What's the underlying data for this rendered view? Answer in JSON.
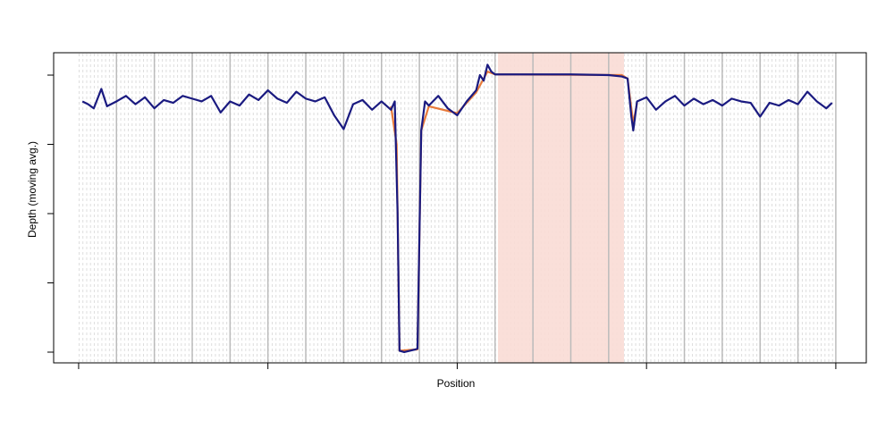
{
  "chart_data": {
    "type": "line",
    "x_label": "Position",
    "y_label": "Depth (moving avg.)",
    "xlim": [
      -0.132,
      4.161
    ],
    "ylim": [
      -0.155,
      4.323
    ],
    "xticks": [
      0,
      1,
      2,
      3,
      4
    ],
    "yticks": [
      0,
      1,
      2,
      3,
      4
    ],
    "major_grid_x": [
      0.2,
      0.4,
      0.6,
      0.8,
      1.0,
      1.2,
      1.4,
      1.6,
      1.8,
      2.0,
      2.2,
      2.4,
      2.6,
      2.8,
      3.0,
      3.2,
      3.4,
      3.6,
      3.8,
      4.0
    ],
    "highlight": {
      "xrange": [
        2.215,
        2.881
      ],
      "color": "#f9dcd5"
    },
    "series": [
      {
        "color": "#e87a3a",
        "x": [
          1.65,
          1.68,
          1.695,
          1.79,
          1.81,
          1.85,
          2.0,
          2.1,
          2.16,
          2.2,
          2.87,
          2.9,
          2.93,
          2.95
        ],
        "values": [
          3.55,
          3.0,
          0.02,
          0.04,
          3.2,
          3.55,
          3.45,
          3.75,
          4.05,
          4.01,
          4.0,
          3.95,
          3.3,
          3.6
        ]
      },
      {
        "color": "#1a1a80",
        "x": [
          0.02,
          0.05,
          0.08,
          0.1,
          0.12,
          0.15,
          0.2,
          0.25,
          0.3,
          0.35,
          0.4,
          0.45,
          0.5,
          0.55,
          0.6,
          0.65,
          0.7,
          0.75,
          0.8,
          0.85,
          0.9,
          0.95,
          1.0,
          1.05,
          1.1,
          1.15,
          1.2,
          1.25,
          1.3,
          1.35,
          1.4,
          1.45,
          1.5,
          1.55,
          1.6,
          1.65,
          1.67,
          1.685,
          1.695,
          1.72,
          1.75,
          1.78,
          1.79,
          1.81,
          1.83,
          1.85,
          1.9,
          1.95,
          2.0,
          2.05,
          2.1,
          2.12,
          2.14,
          2.16,
          2.18,
          2.2,
          2.4,
          2.5,
          2.6,
          2.8,
          2.87,
          2.9,
          2.92,
          2.93,
          2.95,
          3.0,
          3.05,
          3.1,
          3.15,
          3.2,
          3.25,
          3.3,
          3.35,
          3.4,
          3.45,
          3.5,
          3.55,
          3.6,
          3.65,
          3.7,
          3.75,
          3.8,
          3.85,
          3.9,
          3.95,
          3.98
        ],
        "values": [
          3.62,
          3.58,
          3.52,
          3.66,
          3.8,
          3.55,
          3.62,
          3.7,
          3.58,
          3.68,
          3.52,
          3.64,
          3.6,
          3.7,
          3.66,
          3.62,
          3.7,
          3.46,
          3.62,
          3.56,
          3.72,
          3.64,
          3.78,
          3.66,
          3.6,
          3.76,
          3.66,
          3.62,
          3.68,
          3.42,
          3.22,
          3.58,
          3.64,
          3.5,
          3.62,
          3.5,
          3.62,
          2.0,
          0.02,
          0.0,
          0.02,
          0.04,
          0.05,
          3.2,
          3.62,
          3.56,
          3.7,
          3.52,
          3.42,
          3.62,
          3.78,
          4.0,
          3.92,
          4.15,
          4.05,
          4.01,
          4.01,
          4.01,
          4.01,
          4.0,
          3.98,
          3.95,
          3.4,
          3.2,
          3.62,
          3.68,
          3.5,
          3.62,
          3.7,
          3.56,
          3.66,
          3.58,
          3.64,
          3.56,
          3.66,
          3.62,
          3.6,
          3.4,
          3.6,
          3.56,
          3.64,
          3.58,
          3.76,
          3.62,
          3.52,
          3.6
        ]
      }
    ]
  }
}
